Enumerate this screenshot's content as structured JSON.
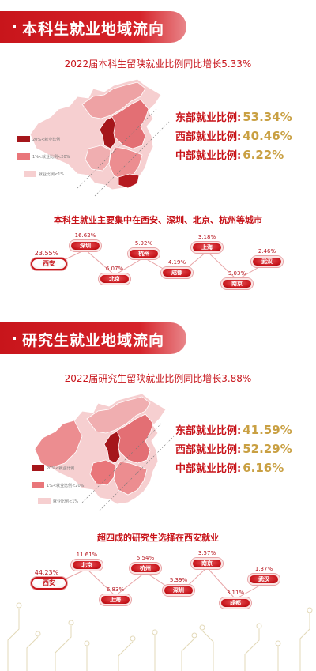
{
  "undergrad": {
    "header_title": "本科生就业地域流向",
    "subtitle": "2022届本科生留陕就业比例同比增长5.33%",
    "stats": [
      {
        "label": "东部就业比例:",
        "value": "53.34%"
      },
      {
        "label": "西部就业比例:",
        "value": "40.46%"
      },
      {
        "label": "中部就业比例:",
        "value": "6.22%"
      }
    ],
    "legend": [
      "20%<就业比例",
      "1%<就业比例<20%",
      "就业比例<1%"
    ],
    "city_caption": "本科生就业主要集中在西安、深圳、北京、杭州等城市",
    "cities": [
      {
        "name": "西安",
        "pct": "23.55%"
      },
      {
        "name": "深圳",
        "pct": "16.62%"
      },
      {
        "name": "北京",
        "pct": "6.07%"
      },
      {
        "name": "杭州",
        "pct": "5.92%"
      },
      {
        "name": "成都",
        "pct": "4.19%"
      },
      {
        "name": "上海",
        "pct": "3.18%"
      },
      {
        "name": "南京",
        "pct": "3.03%"
      },
      {
        "name": "武汉",
        "pct": "2.46%"
      }
    ]
  },
  "graduate": {
    "header_title": "研究生就业地域流向",
    "subtitle": "2022届研究生留陕就业比例同比增长3.88%",
    "stats": [
      {
        "label": "东部就业比例:",
        "value": "41.59%"
      },
      {
        "label": "西部就业比例:",
        "value": "52.29%"
      },
      {
        "label": "中部就业比例:",
        "value": "6.16%"
      }
    ],
    "legend": [
      "20%<就业比例",
      "1%<就业比例<20%",
      "就业比例<1%"
    ],
    "city_caption": "超四成的研究生选择在西安就业",
    "cities": [
      {
        "name": "西安",
        "pct": "44.23%"
      },
      {
        "name": "北京",
        "pct": "11.61%"
      },
      {
        "name": "上海",
        "pct": "6.83%"
      },
      {
        "name": "杭州",
        "pct": "5.54%"
      },
      {
        "name": "深圳",
        "pct": "5.39%"
      },
      {
        "name": "南京",
        "pct": "3.57%"
      },
      {
        "name": "成都",
        "pct": "3.11%"
      },
      {
        "name": "武汉",
        "pct": "1.37%"
      }
    ]
  },
  "colors": {
    "brand_red": "#c8151b",
    "gold": "#c9a043",
    "legend_high": "#a5161b",
    "legend_mid": "#e9767a",
    "legend_low": "#f6cfd0"
  }
}
